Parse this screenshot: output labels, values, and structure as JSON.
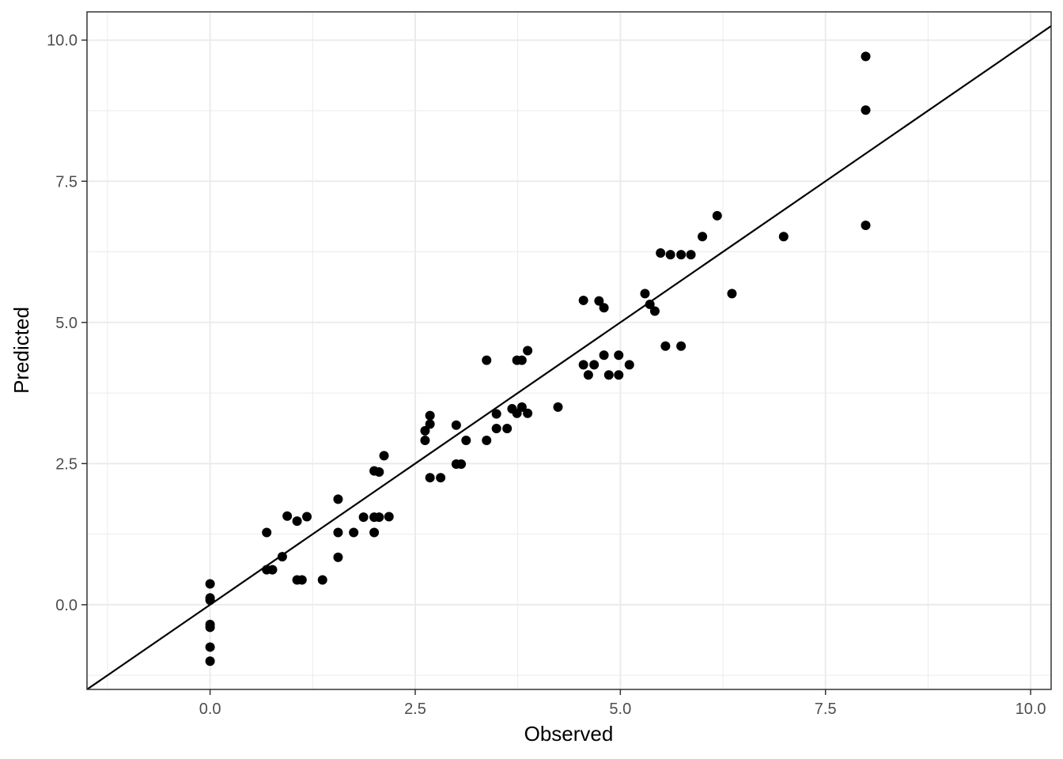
{
  "chart_data": {
    "type": "scatter",
    "xlabel": "Observed",
    "ylabel": "Predicted",
    "xlim": [
      -1.5,
      10.25
    ],
    "ylim": [
      -1.5,
      10.5
    ],
    "x_ticks": [
      "0.0",
      "2.5",
      "5.0",
      "7.5",
      "10.0"
    ],
    "y_ticks": [
      "0.0",
      "2.5",
      "5.0",
      "7.5",
      "10.0"
    ],
    "x_tick_values": [
      0,
      2.5,
      5,
      7.5,
      10
    ],
    "y_tick_values": [
      0,
      2.5,
      5,
      7.5,
      10
    ],
    "grid": true,
    "reference_line": {
      "type": "identity",
      "slope": 1,
      "intercept": 0
    },
    "colors": {
      "points": "#000000",
      "line": "#000000",
      "grid": "#ebebeb",
      "panel_border": "#333333"
    },
    "points": [
      [
        0,
        0.37
      ],
      [
        0,
        0.12
      ],
      [
        0,
        0.08
      ],
      [
        0,
        -0.35
      ],
      [
        0,
        -0.4
      ],
      [
        0,
        -0.75
      ],
      [
        0,
        -1.0
      ],
      [
        0.69,
        1.28
      ],
      [
        0.69,
        0.62
      ],
      [
        0.76,
        0.62
      ],
      [
        0.88,
        0.85
      ],
      [
        0.94,
        1.57
      ],
      [
        1.06,
        1.48
      ],
      [
        1.06,
        0.44
      ],
      [
        1.12,
        0.44
      ],
      [
        1.18,
        1.56
      ],
      [
        1.37,
        0.44
      ],
      [
        1.56,
        1.87
      ],
      [
        1.56,
        1.28
      ],
      [
        1.56,
        0.84
      ],
      [
        1.75,
        1.28
      ],
      [
        1.87,
        1.55
      ],
      [
        2.0,
        2.37
      ],
      [
        2.0,
        1.55
      ],
      [
        2.0,
        1.28
      ],
      [
        2.06,
        2.35
      ],
      [
        2.06,
        1.55
      ],
      [
        2.12,
        2.64
      ],
      [
        2.18,
        1.56
      ],
      [
        2.62,
        3.08
      ],
      [
        2.62,
        2.91
      ],
      [
        2.68,
        3.35
      ],
      [
        2.68,
        3.2
      ],
      [
        2.68,
        2.25
      ],
      [
        2.81,
        2.25
      ],
      [
        3.0,
        3.18
      ],
      [
        3.0,
        2.49
      ],
      [
        3.06,
        2.49
      ],
      [
        3.12,
        2.91
      ],
      [
        3.37,
        4.33
      ],
      [
        3.37,
        2.91
      ],
      [
        3.49,
        3.38
      ],
      [
        3.49,
        3.12
      ],
      [
        3.62,
        3.12
      ],
      [
        3.68,
        3.47
      ],
      [
        3.74,
        4.33
      ],
      [
        3.74,
        3.39
      ],
      [
        3.8,
        4.33
      ],
      [
        3.8,
        3.5
      ],
      [
        3.87,
        4.5
      ],
      [
        3.87,
        3.39
      ],
      [
        4.24,
        3.5
      ],
      [
        4.55,
        5.39
      ],
      [
        4.55,
        4.25
      ],
      [
        4.61,
        4.07
      ],
      [
        4.68,
        4.25
      ],
      [
        4.74,
        5.38
      ],
      [
        4.8,
        5.26
      ],
      [
        4.8,
        4.42
      ],
      [
        4.86,
        4.07
      ],
      [
        4.98,
        4.42
      ],
      [
        4.98,
        4.07
      ],
      [
        5.11,
        4.25
      ],
      [
        5.3,
        5.51
      ],
      [
        5.36,
        5.32
      ],
      [
        5.42,
        5.2
      ],
      [
        5.49,
        6.23
      ],
      [
        5.55,
        4.58
      ],
      [
        5.61,
        6.2
      ],
      [
        5.74,
        6.2
      ],
      [
        5.74,
        4.58
      ],
      [
        5.86,
        6.2
      ],
      [
        6.0,
        6.52
      ],
      [
        6.18,
        6.89
      ],
      [
        6.36,
        5.51
      ],
      [
        6.99,
        6.52
      ],
      [
        7.99,
        9.71
      ],
      [
        7.99,
        8.76
      ],
      [
        7.99,
        6.72
      ]
    ]
  }
}
